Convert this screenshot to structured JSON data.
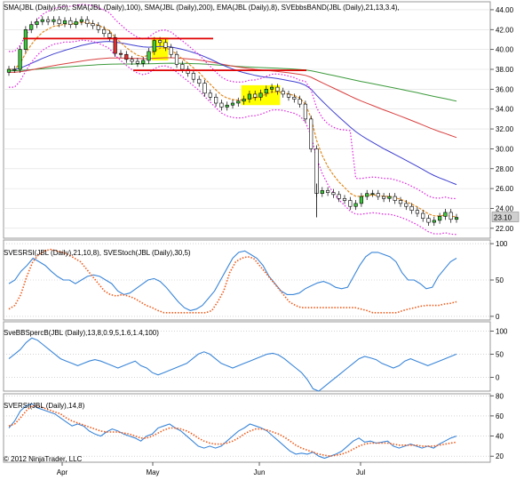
{
  "copyright": "© 2012 NinjaTrader, LLC",
  "chart_data": [
    {
      "type": "candlestick",
      "panel": "price",
      "legend": "SMA(JBL (Daily),50), SMA(JBL (Daily),100), SMA(JBL (Daily),200), EMA(JBL (Daily),8), SVEbbsBAND(JBL (Daily),21,13,3.4),",
      "ylim": [
        21,
        44.8
      ],
      "yticks": [
        "44.00",
        "42.00",
        "40.00",
        "38.00",
        "36.00",
        "34.00",
        "32.00",
        "30.00",
        "28.00",
        "26.00",
        "24.00",
        "22.00"
      ],
      "last_price": "23.10",
      "xticks": [
        "Apr",
        "May",
        "Jun",
        "Jul"
      ],
      "colors": {
        "sma50": "#3f3fd0",
        "sma100": "#d94040",
        "sma200": "#3c9a3c",
        "ema8": "#e08a1e",
        "band": "#e020e0",
        "up": "#3ec83e",
        "down": "#000000",
        "red_candle": "#e03030",
        "support": "#e00000",
        "highlight": "#ffff00"
      },
      "close": [
        38,
        38,
        40,
        42,
        42.5,
        42.8,
        43,
        42.8,
        43,
        42.6,
        42.9,
        42.5,
        42.8,
        43,
        42.6,
        42.4,
        42,
        41.6,
        41.2,
        39.6,
        39.5,
        39,
        38.8,
        38.6,
        38.9,
        39.8,
        40.9,
        40.7,
        40.2,
        39.5,
        38.5,
        38,
        37.6,
        37,
        36.6,
        35.6,
        35.2,
        34.6,
        34.2,
        34.4,
        34.6,
        34.8,
        35,
        35.5,
        35.2,
        35.6,
        36,
        36.2,
        35.8,
        35.5,
        35.2,
        35,
        34.5,
        33,
        30,
        25.5,
        25.8,
        25.6,
        25.4,
        25,
        24.8,
        24.2,
        24.5,
        25.2,
        25.5,
        25.5,
        25.2,
        25,
        25.2,
        24.8,
        24.5,
        24.2,
        23.8,
        23.5,
        23,
        22.6,
        22.8,
        23.2,
        23.6,
        22.9,
        23.1
      ]
    },
    {
      "type": "line",
      "panel": "sversi_stoch",
      "legend": "SVESRSI(JBL (Daily),21,10,8), SVEStoch(JBL (Daily),30,5)",
      "ylim": [
        -5,
        105
      ],
      "yticks": [
        "100",
        "50",
        "0"
      ],
      "series": [
        {
          "name": "SVESRSI",
          "color": "#3a86d8",
          "values": [
            45,
            50,
            62,
            70,
            80,
            75,
            70,
            62,
            55,
            50,
            50,
            45,
            50,
            55,
            57,
            55,
            50,
            45,
            35,
            30,
            32,
            38,
            44,
            50,
            52,
            48,
            40,
            30,
            20,
            12,
            8,
            10,
            15,
            25,
            35,
            50,
            65,
            80,
            88,
            90,
            85,
            80,
            70,
            55,
            45,
            35,
            30,
            30,
            32,
            38,
            42,
            46,
            48,
            45,
            40,
            38,
            40,
            55,
            70,
            82,
            88,
            88,
            85,
            82,
            75,
            60,
            50,
            50,
            45,
            38,
            40,
            55,
            65,
            75,
            80
          ]
        },
        {
          "name": "SVEStoch",
          "color": "#f05a1a",
          "dotted": true,
          "values": [
            10,
            15,
            30,
            55,
            75,
            85,
            90,
            92,
            90,
            88,
            85,
            80,
            75,
            65,
            55,
            45,
            35,
            30,
            28,
            30,
            28,
            25,
            20,
            15,
            12,
            8,
            5,
            5,
            5,
            5,
            5,
            5,
            5,
            5,
            8,
            20,
            35,
            60,
            75,
            80,
            82,
            80,
            70,
            60,
            50,
            40,
            30,
            20,
            15,
            12,
            12,
            12,
            12,
            12,
            12,
            12,
            12,
            12,
            12,
            10,
            8,
            5,
            5,
            5,
            5,
            5,
            8,
            10,
            12,
            14,
            15,
            15,
            15,
            17,
            18,
            20
          ]
        }
      ]
    },
    {
      "type": "line",
      "panel": "svebbspercb",
      "legend": "SveBBSpercB(JBL (Daily),13,8,0.9,5,1.6,1.4,100)",
      "ylim": [
        -30,
        120
      ],
      "yticks": [
        "100",
        "50",
        "0"
      ],
      "series": [
        {
          "name": "SveBBSpercB",
          "color": "#3a86d8",
          "values": [
            40,
            50,
            60,
            75,
            85,
            80,
            70,
            60,
            50,
            40,
            35,
            30,
            25,
            30,
            35,
            38,
            35,
            30,
            25,
            20,
            25,
            30,
            35,
            25,
            20,
            10,
            5,
            10,
            15,
            20,
            25,
            30,
            40,
            50,
            55,
            50,
            40,
            30,
            25,
            20,
            25,
            30,
            35,
            40,
            45,
            50,
            52,
            48,
            40,
            30,
            20,
            10,
            -5,
            -25,
            -30,
            -20,
            -10,
            0,
            10,
            20,
            30,
            40,
            45,
            42,
            38,
            30,
            25,
            20,
            25,
            35,
            40,
            35,
            30,
            25,
            30,
            35,
            40,
            45,
            50
          ]
        }
      ]
    },
    {
      "type": "line",
      "panel": "svrsi",
      "legend": "SVERSI(JBL (Daily),14,8)",
      "ylim": [
        14,
        82
      ],
      "yticks": [
        "80",
        "60",
        "40",
        "20"
      ],
      "series": [
        {
          "name": "SVRSI",
          "color": "#3a86d8",
          "values": [
            48,
            55,
            65,
            70,
            72,
            68,
            66,
            64,
            62,
            58,
            54,
            50,
            52,
            50,
            45,
            42,
            40,
            44,
            47,
            45,
            42,
            40,
            38,
            35,
            40,
            42,
            48,
            50,
            52,
            48,
            45,
            40,
            35,
            30,
            28,
            30,
            28,
            30,
            35,
            40,
            45,
            48,
            52,
            50,
            48,
            45,
            40,
            35,
            30,
            25,
            22,
            23,
            22,
            24,
            20,
            18,
            20,
            22,
            25,
            30,
            35,
            38,
            34,
            35,
            33,
            34,
            35,
            30,
            28,
            30,
            32,
            30,
            28,
            30,
            28,
            32,
            35,
            38,
            40
          ]
        },
        {
          "name": "SVRSI signal",
          "color": "#f05a1a",
          "dotted": true,
          "values": [
            50,
            52,
            58,
            65,
            70,
            70,
            68,
            66,
            64,
            62,
            58,
            55,
            53,
            51,
            49,
            47,
            45,
            44,
            44,
            44,
            43,
            42,
            40,
            38,
            38,
            40,
            43,
            46,
            48,
            48,
            47,
            45,
            42,
            38,
            35,
            33,
            32,
            32,
            33,
            35,
            38,
            42,
            45,
            47,
            47,
            46,
            44,
            42,
            39,
            35,
            31,
            28,
            26,
            24,
            22,
            21,
            20,
            21,
            22,
            24,
            27,
            30,
            32,
            33,
            33,
            33,
            33,
            32,
            31,
            31,
            31,
            31,
            30,
            30,
            30,
            31,
            32,
            33,
            34
          ]
        }
      ]
    }
  ]
}
